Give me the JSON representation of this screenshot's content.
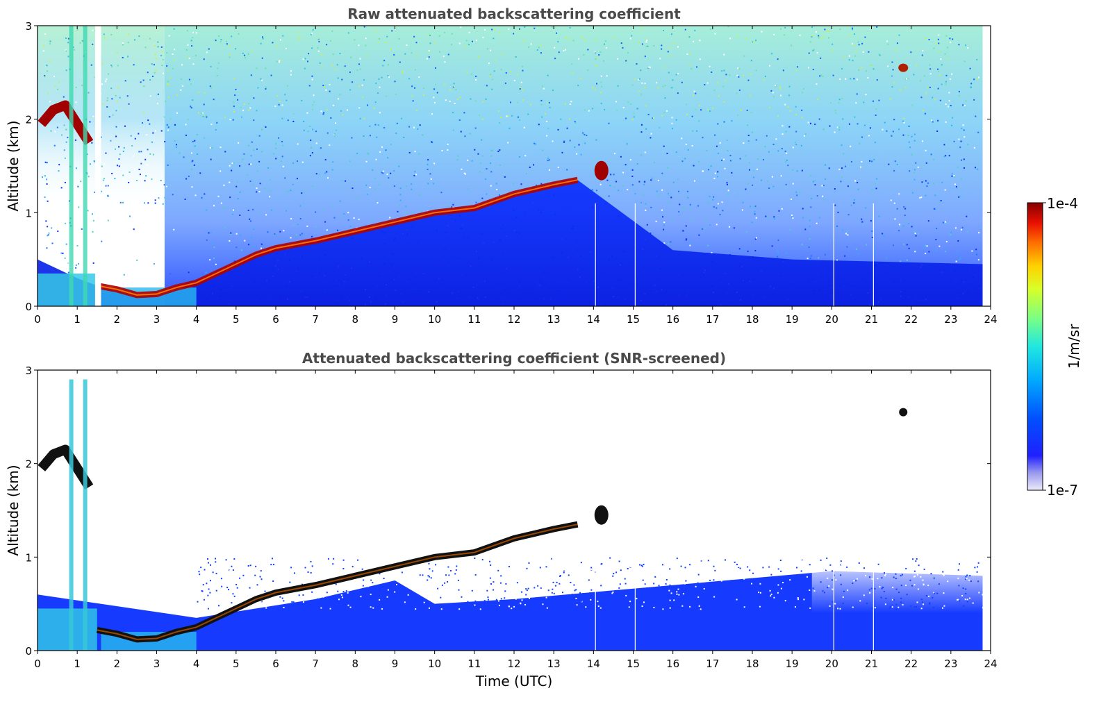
{
  "chart_data": [
    {
      "type": "heatmap",
      "title": "Raw attenuated backscattering coefficient",
      "xlabel": "",
      "ylabel": "Altitude (km)",
      "xlim": [
        0,
        24
      ],
      "ylim": [
        0,
        3
      ],
      "x_ticks": [
        "0",
        "1",
        "2",
        "3",
        "4",
        "5",
        "6",
        "7",
        "8",
        "9",
        "10",
        "11",
        "12",
        "13",
        "14",
        "15",
        "16",
        "17",
        "18",
        "19",
        "20",
        "21",
        "22",
        "23",
        "24"
      ],
      "y_ticks": [
        "0",
        "1",
        "2",
        "3"
      ],
      "data_end_time": 23.8,
      "features": {
        "boundary_layer_top": {
          "time": [
            0,
            0.5,
            1,
            1.5,
            2,
            2.5,
            3,
            3.5,
            4,
            4.5,
            5,
            5.5,
            6,
            7,
            8,
            9,
            10,
            11,
            12,
            13,
            13.6
          ],
          "altitude": [
            0.5,
            0.4,
            0.3,
            0.22,
            0.18,
            0.12,
            0.13,
            0.2,
            0.25,
            0.35,
            0.45,
            0.55,
            0.62,
            0.7,
            0.8,
            0.9,
            1.0,
            1.05,
            1.2,
            1.3,
            1.35
          ]
        },
        "early_cloud": {
          "time": [
            0.1,
            0.4,
            0.7,
            1.0,
            1.3
          ],
          "altitude": [
            1.95,
            2.1,
            2.15,
            1.95,
            1.75
          ]
        },
        "isolated_cloud_14h": {
          "time": 14.2,
          "altitude": 1.45
        },
        "isolated_cloud_22h": {
          "time": 21.8,
          "altitude": 2.55
        }
      }
    },
    {
      "type": "heatmap",
      "title": "Attenuated backscattering coefficient (SNR-screened)",
      "xlabel": "Time (UTC)",
      "ylabel": "Altitude (km)",
      "xlim": [
        0,
        24
      ],
      "ylim": [
        0,
        3
      ],
      "x_ticks": [
        "0",
        "1",
        "2",
        "3",
        "4",
        "5",
        "6",
        "7",
        "8",
        "9",
        "10",
        "11",
        "12",
        "13",
        "14",
        "15",
        "16",
        "17",
        "18",
        "19",
        "20",
        "21",
        "22",
        "23",
        "24"
      ],
      "y_ticks": [
        "0",
        "1",
        "2",
        "3"
      ],
      "data_end_time": 23.8,
      "screened_top": {
        "time": [
          0,
          4,
          7,
          9,
          10,
          12,
          16,
          20,
          23.8
        ],
        "altitude": [
          0.6,
          0.35,
          0.55,
          0.75,
          0.5,
          0.55,
          0.7,
          0.85,
          0.8
        ]
      }
    }
  ],
  "colorbar": {
    "label": "1/m/sr",
    "max_label": "1e-4",
    "min_label": "1e-7",
    "colors": [
      "#e8e8f8",
      "#c8c8f0",
      "#8888ee",
      "#3030ff",
      "#0000ff",
      "#0040ff",
      "#0090ff",
      "#00d0ff",
      "#30f0d0",
      "#80ff80",
      "#d0ff30",
      "#ffe000",
      "#ff9000",
      "#ff4000",
      "#e00000",
      "#8b0000"
    ]
  }
}
